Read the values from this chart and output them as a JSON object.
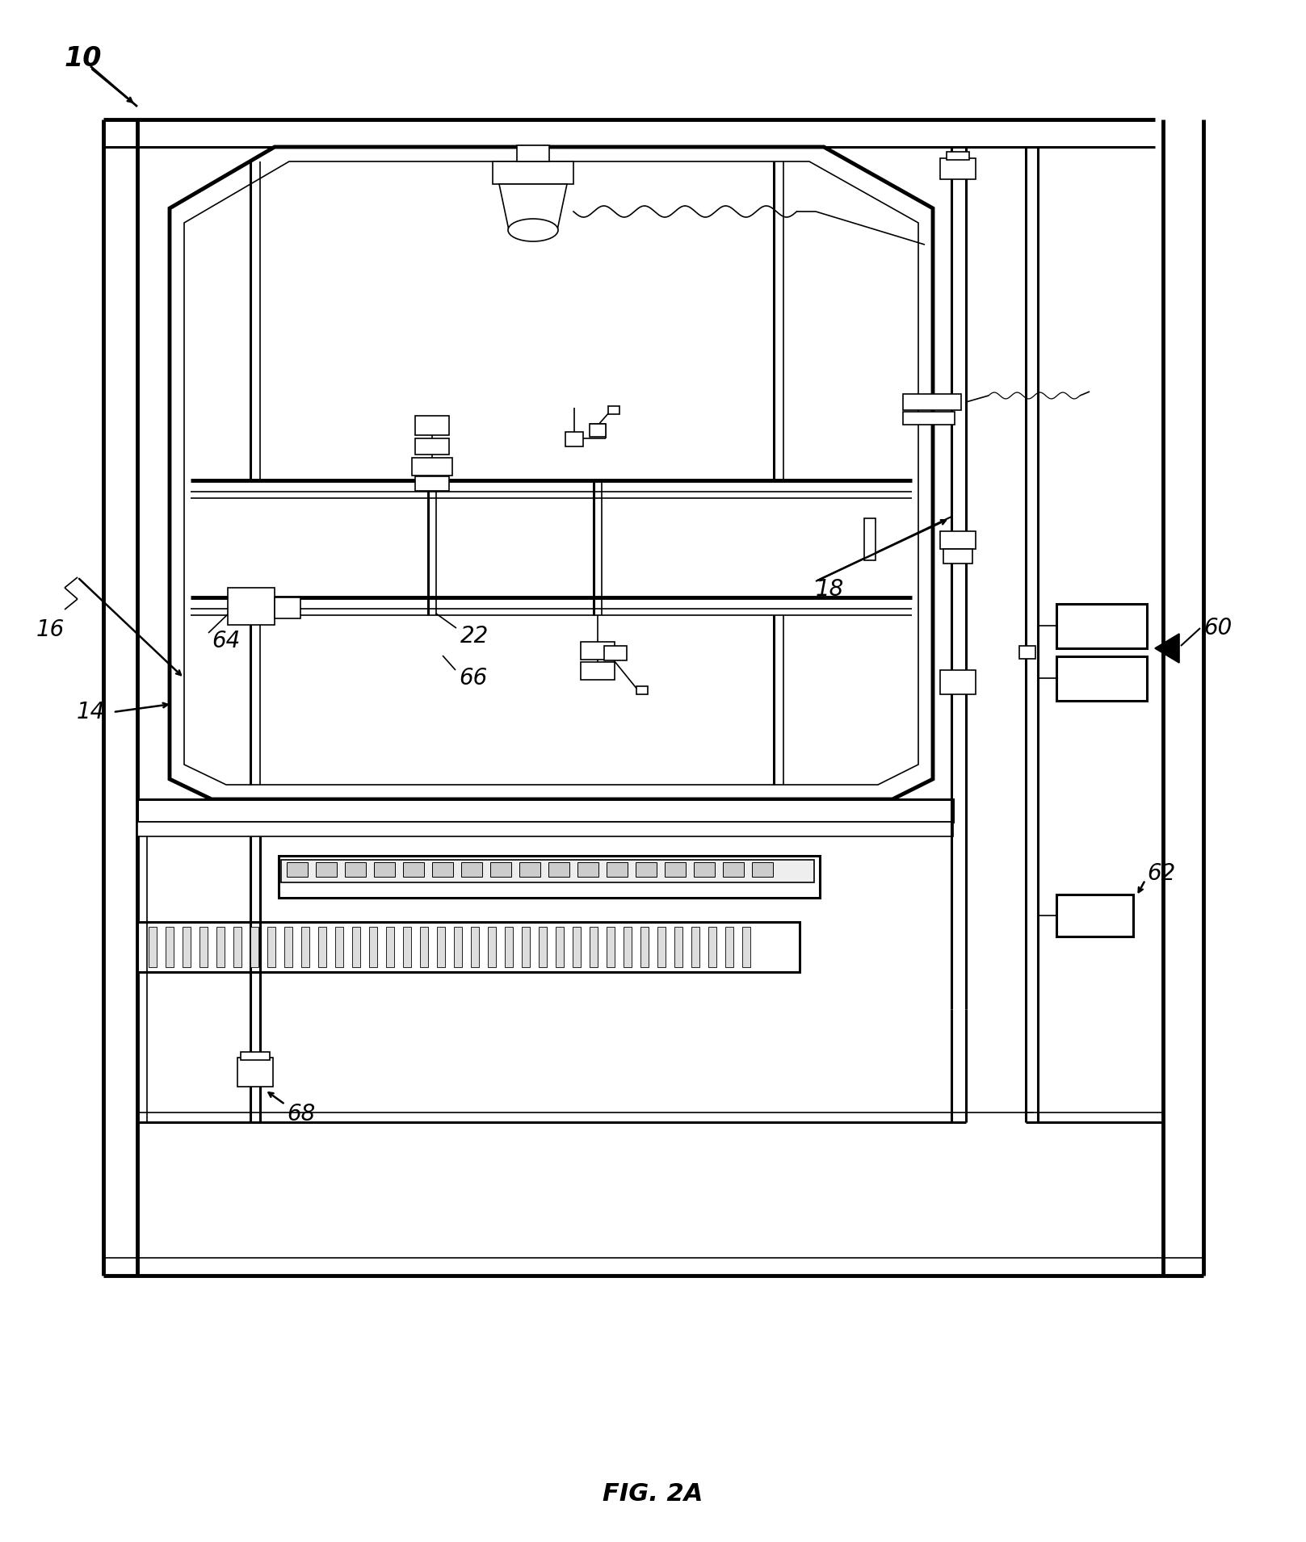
{
  "title": "FIG. 2A",
  "title_fontsize": 22,
  "title_fontstyle": "italic",
  "title_fontweight": "bold",
  "background_color": "#ffffff",
  "line_color": "#000000",
  "fig_width": 16.17,
  "fig_height": 19.1,
  "dpi": 100
}
